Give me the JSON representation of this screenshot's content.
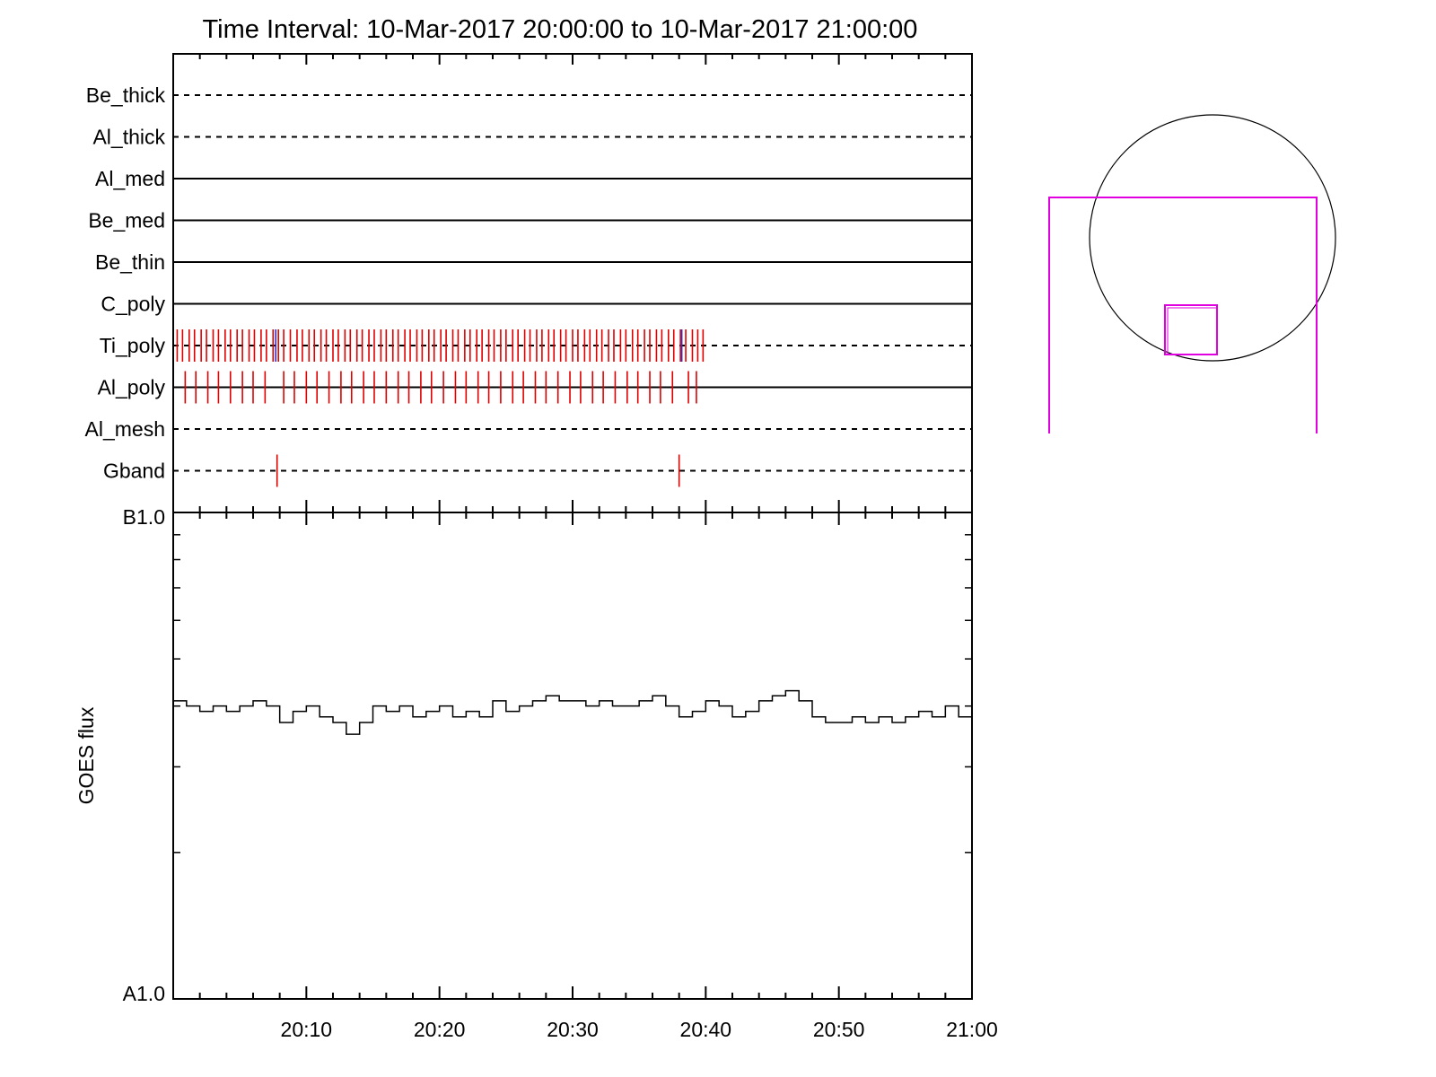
{
  "title": "Time Interval: 10-Mar-2017 20:00:00 to 10-Mar-2017 21:00:00",
  "colors": {
    "axis": "#000000",
    "exposure_mark": "#e00000",
    "special_mark": "#3030c0",
    "fov_box": "#e000e0",
    "sun_disk": "#000000"
  },
  "chart_data": [
    {
      "type": "timeline",
      "name": "filter_usage",
      "x_range": [
        "20:00",
        "21:00"
      ],
      "rows": [
        {
          "label": "Be_thick",
          "style": "dashed",
          "marks": []
        },
        {
          "label": "Al_thick",
          "style": "dashed",
          "marks": []
        },
        {
          "label": "Al_med",
          "style": "solid",
          "marks": []
        },
        {
          "label": "Be_med",
          "style": "solid",
          "marks": []
        },
        {
          "label": "Be_thin",
          "style": "solid",
          "marks": []
        },
        {
          "label": "C_poly",
          "style": "solid",
          "marks": []
        },
        {
          "label": "Ti_poly",
          "style": "dashed",
          "marks": [
            0.3,
            0.7,
            1.2,
            1.6,
            2.1,
            2.5,
            3.0,
            3.4,
            3.9,
            4.3,
            4.8,
            5.2,
            5.7,
            6.1,
            6.6,
            7.0,
            7.5,
            7.9,
            8.3,
            8.8,
            9.3,
            9.7,
            10.2,
            10.6,
            11.1,
            11.5,
            12.0,
            12.4,
            12.9,
            13.3,
            13.8,
            14.2,
            14.7,
            15.1,
            15.6,
            16.0,
            16.5,
            16.9,
            17.4,
            17.8,
            18.3,
            18.7,
            19.2,
            19.6,
            20.1,
            20.5,
            21.0,
            21.4,
            21.9,
            22.3,
            22.8,
            23.2,
            23.7,
            24.1,
            24.6,
            25.0,
            25.5,
            25.9,
            26.4,
            26.8,
            27.3,
            27.7,
            28.2,
            28.6,
            29.1,
            29.5,
            30.0,
            30.4,
            30.9,
            31.3,
            31.8,
            32.2,
            32.7,
            33.1,
            33.6,
            34.0,
            34.5,
            34.9,
            35.4,
            35.8,
            36.3,
            36.7,
            37.2,
            37.6,
            38.1,
            38.5,
            39.0,
            39.4,
            39.8
          ],
          "special_marks": [
            7.7,
            38.2
          ]
        },
        {
          "label": "Al_poly",
          "style": "solid",
          "marks": [
            0.9,
            1.7,
            2.6,
            3.4,
            4.3,
            5.2,
            6.0,
            6.9,
            8.3,
            9.1,
            10.0,
            10.8,
            11.7,
            12.6,
            13.4,
            14.3,
            15.1,
            16.0,
            16.9,
            17.7,
            18.6,
            19.4,
            20.3,
            21.2,
            22.0,
            22.9,
            23.7,
            24.6,
            25.5,
            26.3,
            27.2,
            28.0,
            28.9,
            29.8,
            30.6,
            31.5,
            32.3,
            33.2,
            34.1,
            34.9,
            35.8,
            36.6,
            37.5,
            38.7,
            39.3
          ]
        },
        {
          "label": "Al_mesh",
          "style": "dashed",
          "marks": []
        },
        {
          "label": "Gband",
          "style": "dashed",
          "marks": [
            7.8,
            38.0
          ]
        }
      ]
    },
    {
      "type": "line",
      "name": "goes_flux",
      "ylabel": "GOES flux",
      "y_tick_labels": [
        "B1.0",
        "A1.0"
      ],
      "x_tick_labels": [
        "20:10",
        "20:20",
        "20:30",
        "20:40",
        "20:50",
        "21:00"
      ],
      "x_range_minutes": [
        0,
        60
      ],
      "yscale": "log",
      "ylim": [
        1e-08,
        1e-07
      ],
      "series": [
        {
          "x": [
            0,
            1,
            2,
            3,
            4,
            5,
            6,
            7,
            8,
            9,
            10,
            11,
            12,
            13,
            14,
            15,
            16,
            17,
            18,
            19,
            20,
            21,
            22,
            23,
            24,
            25,
            26,
            27,
            28,
            29,
            30,
            31,
            32,
            33,
            34,
            35,
            36,
            37,
            38,
            39,
            40,
            41,
            42,
            43,
            44,
            45,
            46,
            47,
            48,
            49,
            50,
            51,
            52,
            53,
            54,
            55,
            56,
            57,
            58,
            59,
            60
          ],
          "y": [
            4.1e-08,
            4e-08,
            3.9e-08,
            4e-08,
            3.9e-08,
            4e-08,
            4.1e-08,
            4e-08,
            3.7e-08,
            3.9e-08,
            4e-08,
            3.8e-08,
            3.7e-08,
            3.5e-08,
            3.7e-08,
            4e-08,
            3.9e-08,
            4e-08,
            3.8e-08,
            3.9e-08,
            4e-08,
            3.8e-08,
            3.9e-08,
            3.8e-08,
            4.1e-08,
            3.9e-08,
            4e-08,
            4.1e-08,
            4.2e-08,
            4.1e-08,
            4.1e-08,
            4e-08,
            4.1e-08,
            4e-08,
            4e-08,
            4.1e-08,
            4.2e-08,
            4e-08,
            3.8e-08,
            3.9e-08,
            4.1e-08,
            4e-08,
            3.8e-08,
            3.9e-08,
            4.1e-08,
            4.2e-08,
            4.3e-08,
            4.1e-08,
            3.8e-08,
            3.7e-08,
            3.7e-08,
            3.8e-08,
            3.7e-08,
            3.8e-08,
            3.7e-08,
            3.8e-08,
            3.9e-08,
            3.8e-08,
            4e-08,
            3.8e-08,
            3.8e-08
          ]
        }
      ]
    }
  ]
}
